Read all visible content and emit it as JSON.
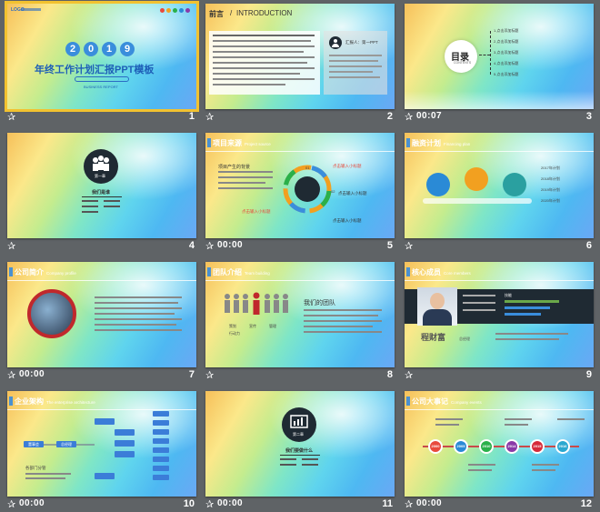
{
  "slides": [
    {
      "num": "1",
      "time": ""
    },
    {
      "num": "2",
      "time": ""
    },
    {
      "num": "3",
      "time": "00:07"
    },
    {
      "num": "4",
      "time": ""
    },
    {
      "num": "5",
      "time": "00:00"
    },
    {
      "num": "6",
      "time": ""
    },
    {
      "num": "7",
      "time": "00:00"
    },
    {
      "num": "8",
      "time": ""
    },
    {
      "num": "9",
      "time": ""
    },
    {
      "num": "10",
      "time": "00:00"
    },
    {
      "num": "11",
      "time": "00:00"
    },
    {
      "num": "12",
      "time": "00:00"
    }
  ],
  "s1": {
    "logo": "LOGO",
    "digits": [
      "2",
      "0",
      "1",
      "9"
    ],
    "title": "年终工作计划汇报PPT模板",
    "sub": "BUSINESS REPORT"
  },
  "s2": {
    "title_cn": "前言",
    "title_sep": "/",
    "title_en": "INTRODUCTION",
    "person": "汇报人：第一PPT"
  },
  "s3": {
    "title": "目录",
    "sub": "CONTENTS",
    "items": [
      "1.点击添加标题",
      "2.点击添加标题",
      "3.点击添加标题",
      "4.点击添加标题",
      "5.点击添加标题"
    ]
  },
  "s4": {
    "label": "第一章",
    "caption": "我们是谁"
  },
  "s5": {
    "header": "项目来源",
    "header_en": "Project source",
    "bullet1": "项目产生的背景",
    "items": [
      "点击输入小标题",
      "点击输入小标题",
      "点击输入小标题",
      "点击输入小标题"
    ],
    "nums": [
      "01",
      "02",
      "03",
      "04"
    ]
  },
  "s6": {
    "header": "融资计划",
    "header_en": "Financing plan",
    "items": [
      "2017年计划",
      "2018年计划",
      "2019年计划",
      "2020年计划"
    ]
  },
  "s7": {
    "header": "公司简介",
    "header_en": "Company profile"
  },
  "s8": {
    "header": "团队介绍",
    "header_en": "Team building",
    "team_title": "我们的团队",
    "roles": [
      "策划",
      "宣传",
      "管理",
      "行动力"
    ]
  },
  "s9": {
    "header": "核心成员",
    "header_en": "Core members",
    "name": "程财富",
    "position": "总经理",
    "skills": "技能"
  },
  "s10": {
    "header": "企业架构",
    "header_en": "The enterprise architecture",
    "left": [
      "董事会",
      "总经理"
    ],
    "dept": "各部门分管"
  },
  "s11": {
    "label": "第二章",
    "caption": "我们要做什么"
  },
  "s12": {
    "header": "公司大事记",
    "header_en": "Company events",
    "years": [
      "2000",
      "2005",
      "2010",
      "2014",
      "2015",
      "2016"
    ],
    "colors": [
      "#e84a3c",
      "#2a8ad6",
      "#2ab04a",
      "#8a3aa8",
      "#d62a3a",
      "#2aa8d0"
    ]
  }
}
